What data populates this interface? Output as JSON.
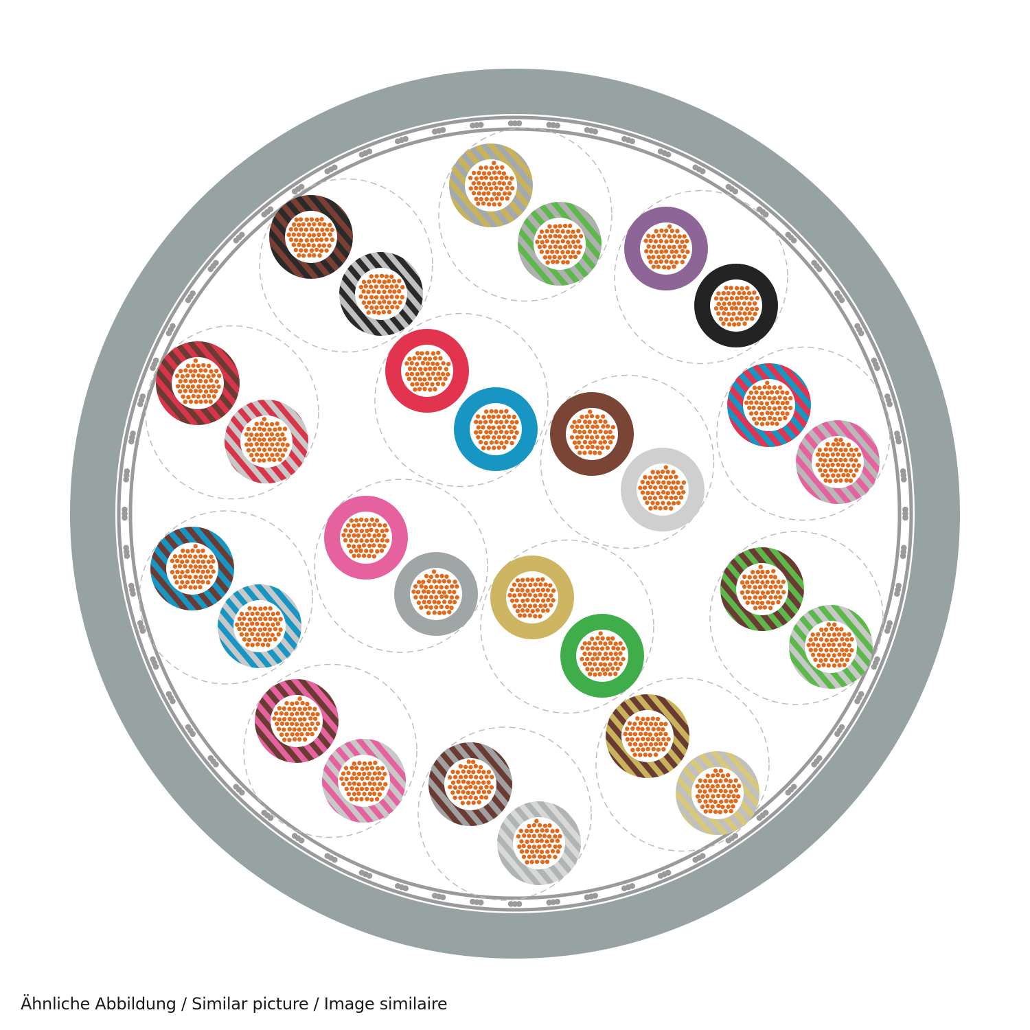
{
  "caption": "Ähnliche Abbildung / Similar picture / Image similaire",
  "colors": {
    "jacket": "#97a3a3",
    "shield": "#9a9a9a",
    "core_strand": "#e0691c",
    "pair_outline": "#bdbdbd"
  },
  "pairs": [
    {
      "wires": [
        {
          "base": "#7a3e33",
          "stripe": "#2a2a2a"
        },
        {
          "base": "#2a2a2a",
          "stripe": "#bfbfbf"
        }
      ]
    },
    {
      "wires": [
        {
          "base": "#c9b35a",
          "stripe": "#a3a9b0"
        },
        {
          "base": "#5cb84a",
          "stripe": "#b0b0b0"
        }
      ]
    },
    {
      "wires": [
        {
          "base": "#8e6597",
          "stripe": null
        },
        {
          "base": "#232323",
          "stripe": null
        }
      ]
    },
    {
      "wires": [
        {
          "base": "#d9354a",
          "stripe": "#6a3b33"
        },
        {
          "base": "#d9354a",
          "stripe": "#c8c8c8"
        }
      ]
    },
    {
      "wires": [
        {
          "base": "#e2334f",
          "stripe": null
        },
        {
          "base": "#1796c4",
          "stripe": null
        }
      ]
    },
    {
      "wires": [
        {
          "base": "#7a4535",
          "stripe": null
        },
        {
          "base": "#cfcfcf",
          "stripe": null
        }
      ]
    },
    {
      "wires": [
        {
          "base": "#1796c4",
          "stripe": "#e2334f"
        },
        {
          "base": "#e6629f",
          "stripe": "#b8b8b8"
        }
      ]
    },
    {
      "wires": [
        {
          "base": "#1796c4",
          "stripe": "#6a3b33"
        },
        {
          "base": "#1796c4",
          "stripe": "#c8c8c8"
        }
      ]
    },
    {
      "wires": [
        {
          "base": "#e6629f",
          "stripe": null
        },
        {
          "base": "#a0a6a6",
          "stripe": null
        }
      ]
    },
    {
      "wires": [
        {
          "base": "#cdb562",
          "stripe": null
        },
        {
          "base": "#3fae4a",
          "stripe": null
        }
      ]
    },
    {
      "wires": [
        {
          "base": "#5cb84a",
          "stripe": "#6a3b33"
        },
        {
          "base": "#5cb84a",
          "stripe": "#c8c8c8"
        }
      ]
    },
    {
      "wires": [
        {
          "base": "#e6629f",
          "stripe": "#6a3b33"
        },
        {
          "base": "#e6629f",
          "stripe": "#c8c8c8"
        }
      ]
    },
    {
      "wires": [
        {
          "base": "#6a3b33",
          "stripe": "#a0a0a0"
        },
        {
          "base": "#b0b4b4",
          "stripe": "#d8d8d8"
        }
      ]
    },
    {
      "wires": [
        {
          "base": "#c9b35a",
          "stripe": "#6a3b33"
        },
        {
          "base": "#d8c87a",
          "stripe": "#c0c0c0"
        }
      ]
    }
  ]
}
